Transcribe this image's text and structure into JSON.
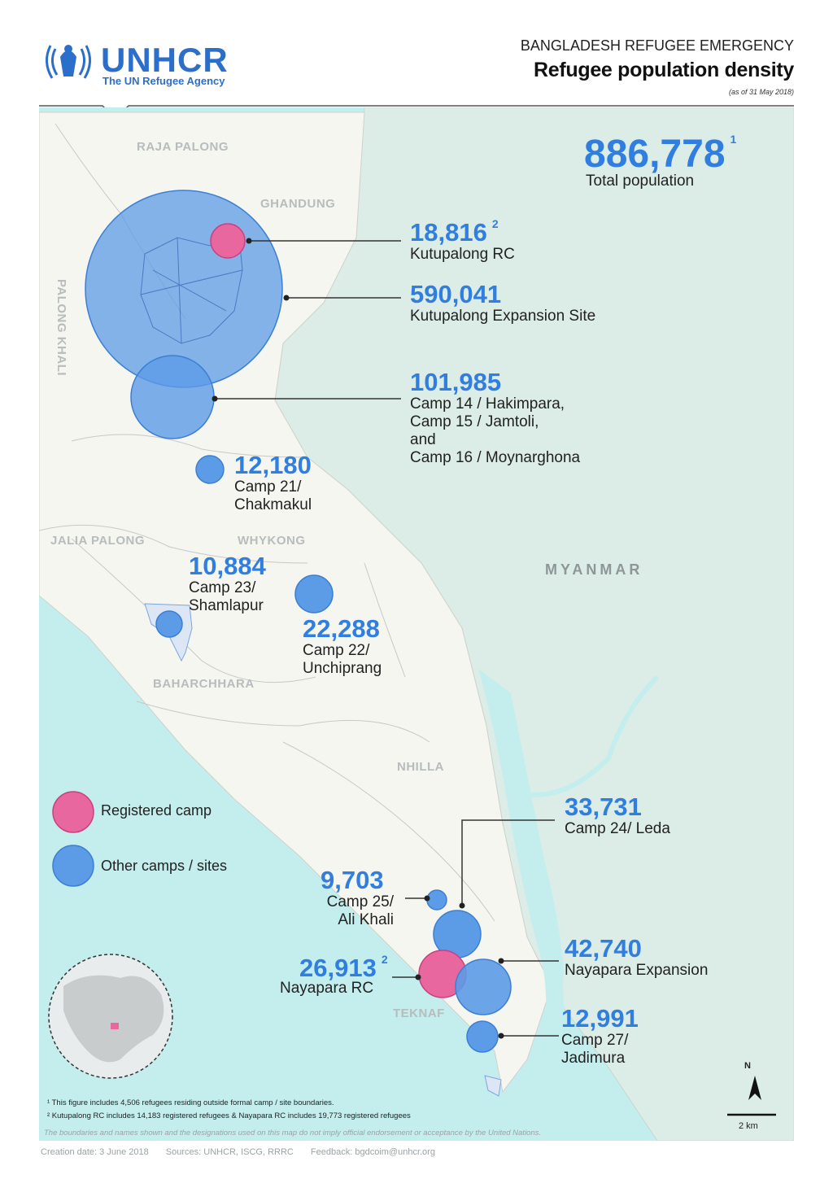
{
  "header": {
    "logo": "UNHCR",
    "logo_sub": "The UN Refugee Agency",
    "kicker": "BANGLADESH REFUGEE EMERGENCY",
    "title": "Refugee population density",
    "date": "(as of 31 May 2018)"
  },
  "total": {
    "value": "886,778",
    "note": "1",
    "label": "Total population"
  },
  "regions": [
    "RAJA PALONG",
    "GHANDUNG",
    "PALONG KHALI",
    "JALIA PALONG",
    "WHYKONG",
    "BAHARCHHARA",
    "NHILLA",
    "TEKNAF"
  ],
  "country": "MYANMAR",
  "sites": [
    {
      "value": "18,816",
      "note": "2",
      "label": "Kutupalong RC",
      "type": "registered"
    },
    {
      "value": "590,041",
      "note": "",
      "label": "Kutupalong Expansion Site",
      "type": "other"
    },
    {
      "value": "101,985",
      "note": "",
      "label": "Camp 14 / Hakimpara, Camp 15 / Jamtoli, and Camp 16 / Moynarghona",
      "label_lines": [
        "Camp 14 / Hakimpara,",
        "Camp 15 / Jamtoli,",
        "and",
        "Camp 16 / Moynarghona"
      ],
      "type": "other"
    },
    {
      "value": "12,180",
      "note": "",
      "label_lines": [
        "Camp 21/",
        "Chakmakul"
      ],
      "type": "other"
    },
    {
      "value": "10,884",
      "note": "",
      "label_lines": [
        "Camp 23/",
        "Shamlapur"
      ],
      "type": "other"
    },
    {
      "value": "22,288",
      "note": "",
      "label_lines": [
        "Camp 22/",
        "Unchiprang"
      ],
      "type": "other"
    },
    {
      "value": "33,731",
      "note": "",
      "label": "Camp 24/ Leda",
      "type": "other"
    },
    {
      "value": "9,703",
      "note": "",
      "label_lines": [
        "Camp 25/",
        "Ali Khali"
      ],
      "type": "other"
    },
    {
      "value": "42,740",
      "note": "",
      "label": "Nayapara Expansion",
      "type": "other"
    },
    {
      "value": "26,913",
      "note": "2",
      "label": "Nayapara RC",
      "type": "registered"
    },
    {
      "value": "12,991",
      "note": "",
      "label_lines": [
        "Camp 27/",
        "Jadimura"
      ],
      "type": "other"
    }
  ],
  "legend": [
    {
      "label": "Registered camp",
      "color": "#e8679e"
    },
    {
      "label": "Other camps / sites",
      "color": "#5c9be6"
    }
  ],
  "colors": {
    "accent": "#2f7ee0",
    "sea": "#c3eeed",
    "myanmar": "#dcece6",
    "bangladesh": "#f6f6f1"
  },
  "notes": [
    "¹ This figure includes 4,506 refugees residing outside formal camp / site boundaries.",
    "² Kutupalong RC includes 14,183 registered refugees & Nayapara RC includes 19,773 registered refugees"
  ],
  "disclaimer": "The boundaries and names shown and the designations used on this map do not imply official endorsement or acceptance by the United Nations.",
  "north": "N",
  "scale": "2 km",
  "footer": {
    "created": "Creation date: 3 June 2018",
    "sources": "Sources: UNHCR, ISCG, RRRC",
    "feedback": "Feedback: bgdcoim@unhcr.org"
  }
}
